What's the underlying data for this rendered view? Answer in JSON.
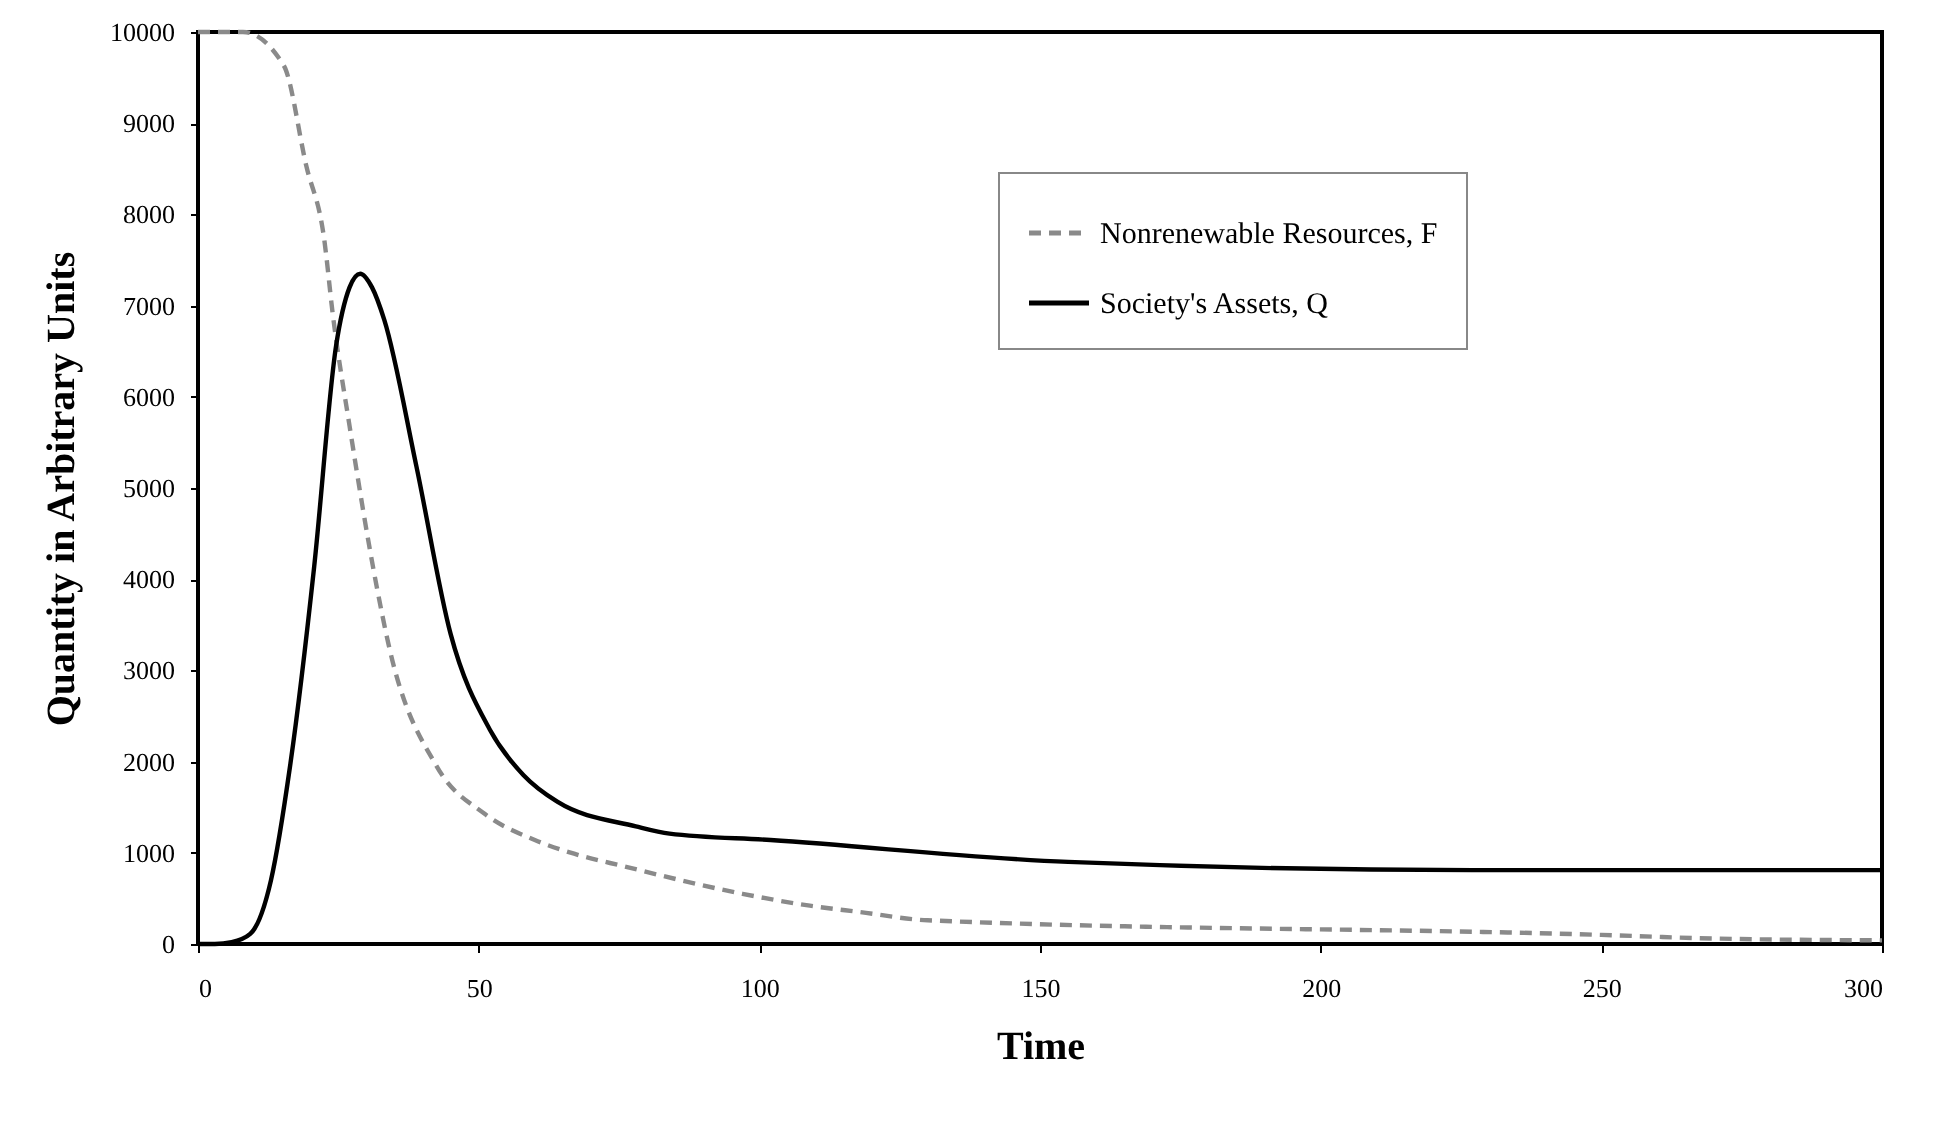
{
  "chart_data": {
    "type": "line",
    "xlabel": "Time",
    "ylabel": "Quantity in  Arbitrary Units",
    "xlim": [
      0,
      300
    ],
    "xticks": [
      0,
      50,
      100,
      150,
      200,
      250,
      300
    ],
    "ylim": [
      0,
      10000
    ],
    "yticks": [
      0,
      1000,
      2000,
      3000,
      4000,
      5000,
      6000,
      7000,
      8000,
      9000,
      10000
    ],
    "grid": false,
    "legend": "top right",
    "marker": "none",
    "series": [
      {
        "name": "Nonrenewable Resources, F",
        "color": "#8a8a8a",
        "line_style": "dashed",
        "x": [
          0,
          8,
          15.3,
          19.3,
          22.5,
          24,
          27,
          31.8,
          34,
          42.5,
          51,
          60,
          67,
          76,
          97,
          109,
          118,
          130,
          250,
          270,
          300
        ],
        "values": [
          10000,
          10000,
          9630,
          8530,
          7720,
          6910,
          5680,
          3930,
          3270,
          1950,
          1430,
          1140,
          990,
          850,
          550,
          420,
          350,
          260,
          100,
          60,
          40
        ]
      },
      {
        "name": "Society's Assets, Q",
        "color": "#000000",
        "line_style": "solid",
        "x": [
          0,
          3,
          6,
          9.3,
          13,
          16.4,
          20.7,
          24.6,
          27,
          28.9,
          31,
          33.2,
          38.9,
          45,
          52,
          58,
          64,
          78,
          84,
          102,
          155,
          227,
          300
        ],
        "values": [
          0,
          0,
          20,
          110,
          700,
          1950,
          4140,
          6560,
          7200,
          7350,
          7200,
          6840,
          5240,
          3400,
          2350,
          1850,
          1560,
          1290,
          1210,
          1140,
          900,
          810,
          810
        ]
      }
    ]
  }
}
